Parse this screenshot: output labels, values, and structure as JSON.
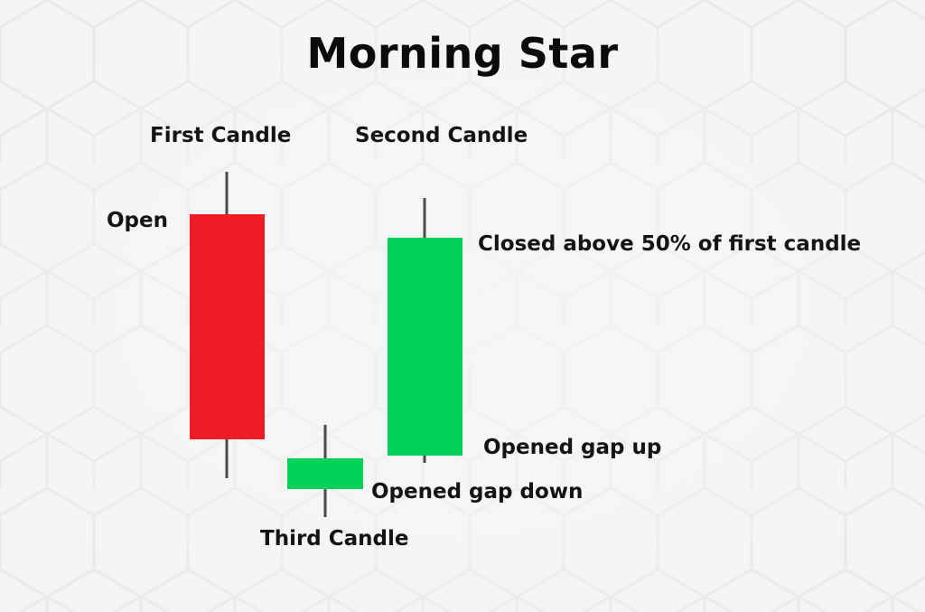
{
  "title": "Morning Star",
  "colors": {
    "bearish": "#ee1c25",
    "bullish": "#00d157",
    "wick": "#4a4a4a",
    "text": "#141414",
    "background": "#f4f4f5"
  },
  "labels": {
    "first_candle": "First Candle",
    "second_candle": "Second Candle",
    "third_candle": "Third Candle",
    "open": "Open",
    "closed_above": "Closed above 50% of first candle",
    "opened_gap_up": "Opened gap up",
    "opened_gap_down": "Opened gap down"
  }
}
